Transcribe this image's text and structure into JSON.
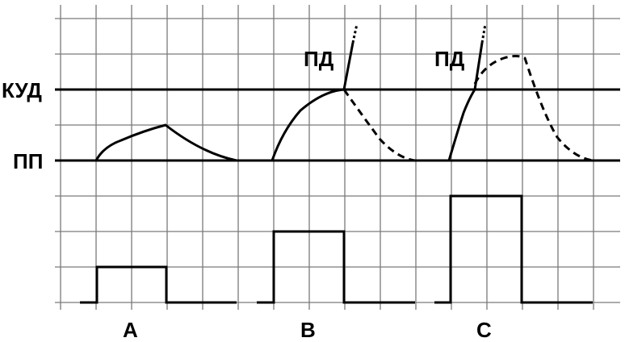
{
  "labels": {
    "threshold_kud": "КУД",
    "resting_pp": "ПП",
    "action_pd_b": "ПД",
    "action_pd_c": "ПД",
    "case_a": "A",
    "case_b": "B",
    "case_c": "C"
  },
  "colors": {
    "ink": "#000000",
    "grid": "#7a7a7a",
    "background": "#ffffff"
  }
}
